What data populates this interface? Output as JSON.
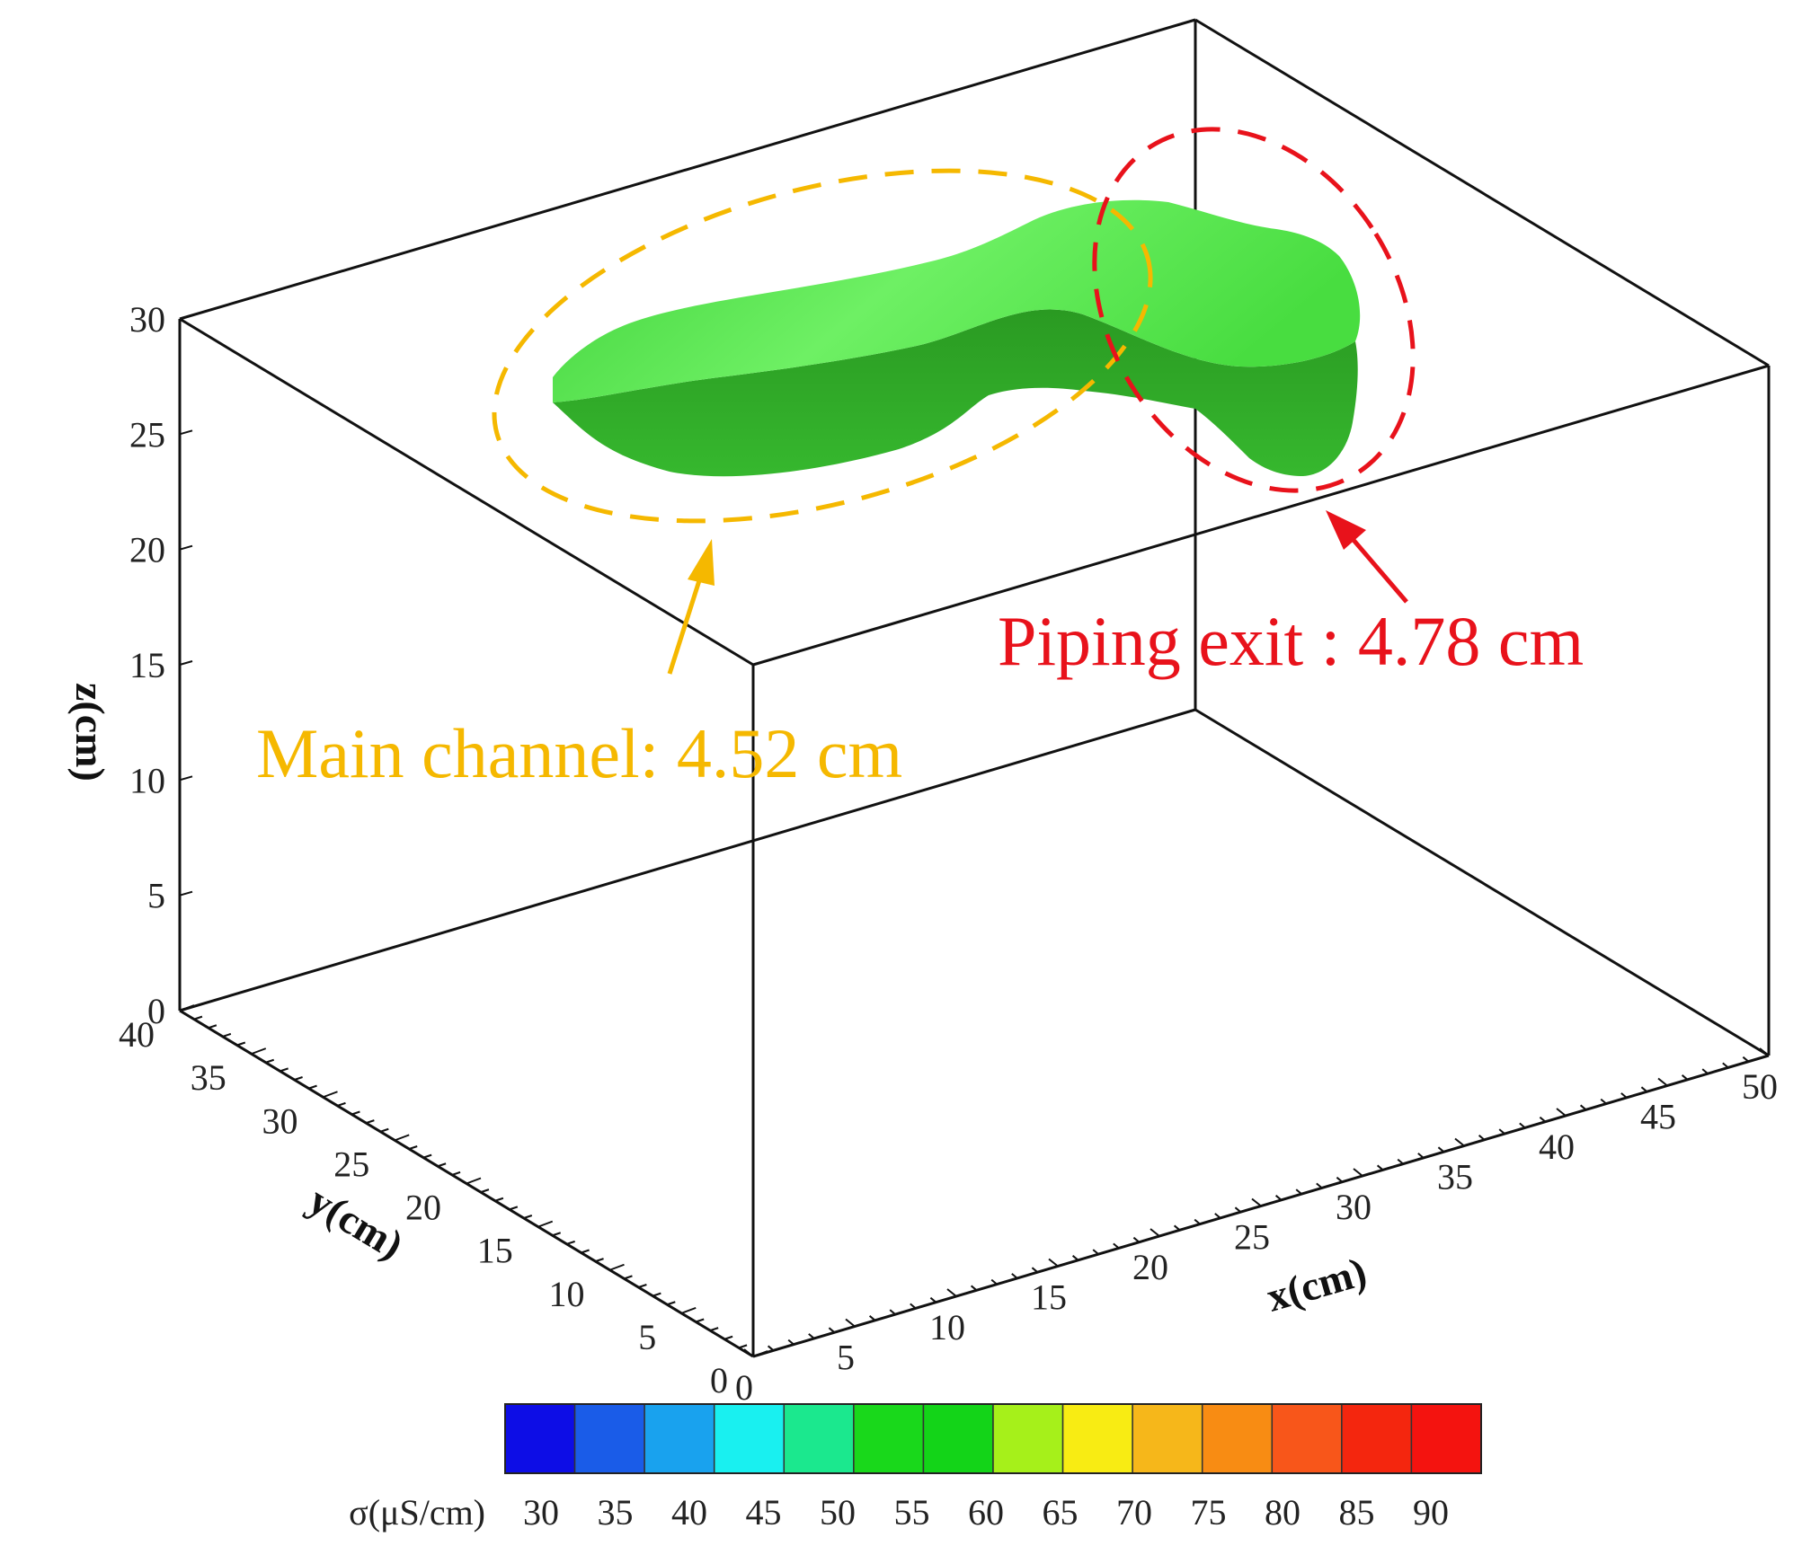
{
  "chart_data": {
    "type": "isosurface-3d",
    "axes": {
      "x": {
        "label": "x(cm)",
        "range": [
          0,
          50
        ],
        "ticks": [
          0,
          5,
          10,
          15,
          20,
          25,
          30,
          35,
          40,
          45,
          50
        ]
      },
      "y": {
        "label": "y(cm)",
        "range": [
          0,
          40
        ],
        "ticks": [
          0,
          5,
          10,
          15,
          20,
          25,
          30,
          35,
          40
        ]
      },
      "z": {
        "label": "z(cm)",
        "range": [
          0,
          30
        ],
        "ticks": [
          0,
          5,
          10,
          15,
          20,
          25,
          30
        ]
      }
    },
    "surface_color": "#3fd23a",
    "annotations": [
      {
        "text": "Main channel:  4.52 cm",
        "color": "#f5b800"
      },
      {
        "text": "Piping exit :  4.78 cm",
        "color": "#e8121b"
      }
    ],
    "colorbar": {
      "label": "σ(μS/cm)",
      "ticks": [
        30,
        35,
        40,
        45,
        50,
        55,
        60,
        65,
        70,
        75,
        80,
        85,
        90
      ],
      "colors": [
        "#0d0de6",
        "#1a5ce8",
        "#19a2ee",
        "#19f0f0",
        "#1be88e",
        "#19d81b",
        "#13d418",
        "#a6f01a",
        "#f8ec13",
        "#f6b71a",
        "#f88c13",
        "#f8561a",
        "#f4260e",
        "#f4130f"
      ]
    }
  }
}
